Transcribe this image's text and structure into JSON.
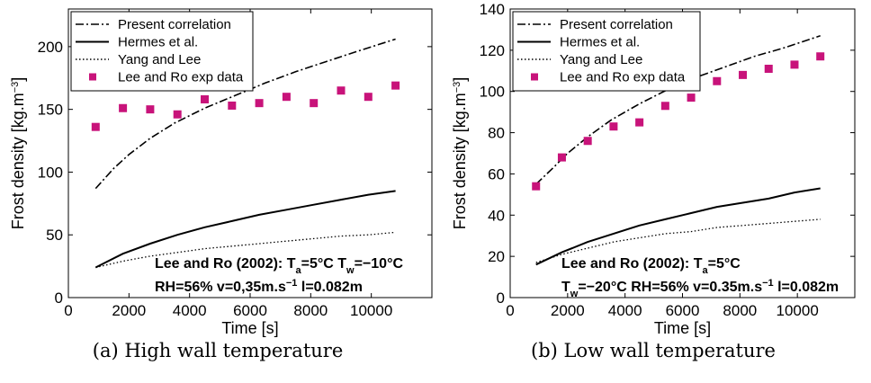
{
  "colors": {
    "exp_marker": "#c8137a",
    "line": "#000000"
  },
  "chart_data": [
    {
      "type": "line",
      "caption": "(a) High wall temperature",
      "xlabel": "Time [s]",
      "ylabel": "Frost density [kg.m⁻³]",
      "xlim": [
        0,
        12000
      ],
      "ylim": [
        0,
        230
      ],
      "xticks": [
        0,
        2000,
        4000,
        6000,
        8000,
        10000
      ],
      "yticks": [
        0,
        50,
        100,
        150,
        200
      ],
      "xtick_labels": [
        "0",
        "2000",
        "4000",
        "6000",
        "8000",
        "10000"
      ],
      "ytick_labels": [
        "0",
        "50",
        "100",
        "150",
        "200"
      ],
      "legend_position": "top-left",
      "annotation": [
        "Lee and Ro (2002): Ta=5°C Tw=−10°C",
        "RH=56% v=0,35m.s⁻¹ l=0.082m"
      ],
      "series": [
        {
          "name": "Present correlation",
          "style": "dashdot",
          "x": [
            900,
            1500,
            2000,
            2700,
            3500,
            4500,
            5500,
            6500,
            7500,
            8500,
            9500,
            10800
          ],
          "y": [
            87,
            103,
            114,
            127,
            139,
            151,
            161,
            171,
            180,
            188,
            196,
            206
          ]
        },
        {
          "name": "Hermes et al.",
          "style": "solid",
          "x": [
            900,
            1800,
            2700,
            3600,
            4500,
            5400,
            6300,
            7200,
            8100,
            9000,
            9900,
            10800
          ],
          "y": [
            24,
            35,
            43,
            50,
            56,
            61,
            66,
            70,
            74,
            78,
            82,
            85
          ]
        },
        {
          "name": "Yang and Lee",
          "style": "dotted",
          "x": [
            900,
            1800,
            2700,
            3600,
            4500,
            5400,
            6300,
            7200,
            8100,
            9000,
            9900,
            10800
          ],
          "y": [
            24,
            29,
            33,
            36,
            39,
            41,
            43,
            45,
            47,
            49,
            50,
            52
          ]
        },
        {
          "name": "Lee and Ro exp data",
          "style": "marker",
          "x": [
            900,
            1800,
            2700,
            3600,
            4500,
            5400,
            6300,
            7200,
            8100,
            9000,
            9900,
            10800
          ],
          "y": [
            136,
            151,
            150,
            146,
            158,
            153,
            155,
            160,
            155,
            165,
            160,
            169
          ]
        }
      ]
    },
    {
      "type": "line",
      "caption": "(b) Low wall temperature",
      "xlabel": "Time [s]",
      "ylabel": "Frost density [kg.m⁻³]",
      "xlim": [
        0,
        12000
      ],
      "ylim": [
        0,
        140
      ],
      "xticks": [
        0,
        2000,
        4000,
        6000,
        8000,
        10000
      ],
      "yticks": [
        0,
        20,
        40,
        60,
        80,
        100,
        120,
        140
      ],
      "xtick_labels": [
        "0",
        "2000",
        "4000",
        "6000",
        "8000",
        "10000"
      ],
      "ytick_labels": [
        "0",
        "20",
        "40",
        "60",
        "80",
        "100",
        "120",
        "140"
      ],
      "legend_position": "top-left",
      "annotation": [
        "Lee and Ro (2002): Ta=5°C",
        "Tw=−20°C RH=56% v=0.35m.s⁻¹ l=0.082m"
      ],
      "series": [
        {
          "name": "Present correlation",
          "style": "dashdot",
          "x": [
            900,
            1500,
            2000,
            2700,
            3500,
            4500,
            5500,
            6500,
            7500,
            8500,
            9500,
            10800
          ],
          "y": [
            55,
            63,
            70,
            78,
            86,
            94,
            101,
            107,
            112,
            117,
            121,
            127
          ]
        },
        {
          "name": "Hermes et al.",
          "style": "solid",
          "x": [
            900,
            1800,
            2700,
            3600,
            4500,
            5400,
            6300,
            7200,
            8100,
            9000,
            9900,
            10800
          ],
          "y": [
            16,
            22,
            27,
            31,
            35,
            38,
            41,
            44,
            46,
            48,
            51,
            53
          ]
        },
        {
          "name": "Yang and Lee",
          "style": "dotted",
          "x": [
            900,
            1800,
            2700,
            3600,
            4500,
            5400,
            6300,
            7200,
            8100,
            9000,
            9900,
            10800
          ],
          "y": [
            17,
            21,
            24,
            27,
            29,
            31,
            32,
            34,
            35,
            36,
            37,
            38
          ]
        },
        {
          "name": "Lee and Ro exp data",
          "style": "marker",
          "x": [
            900,
            1800,
            2700,
            3600,
            4500,
            5400,
            6300,
            7200,
            8100,
            9000,
            9900,
            10800
          ],
          "y": [
            54,
            68,
            76,
            83,
            85,
            93,
            97,
            105,
            108,
            111,
            113,
            117
          ]
        }
      ]
    }
  ]
}
